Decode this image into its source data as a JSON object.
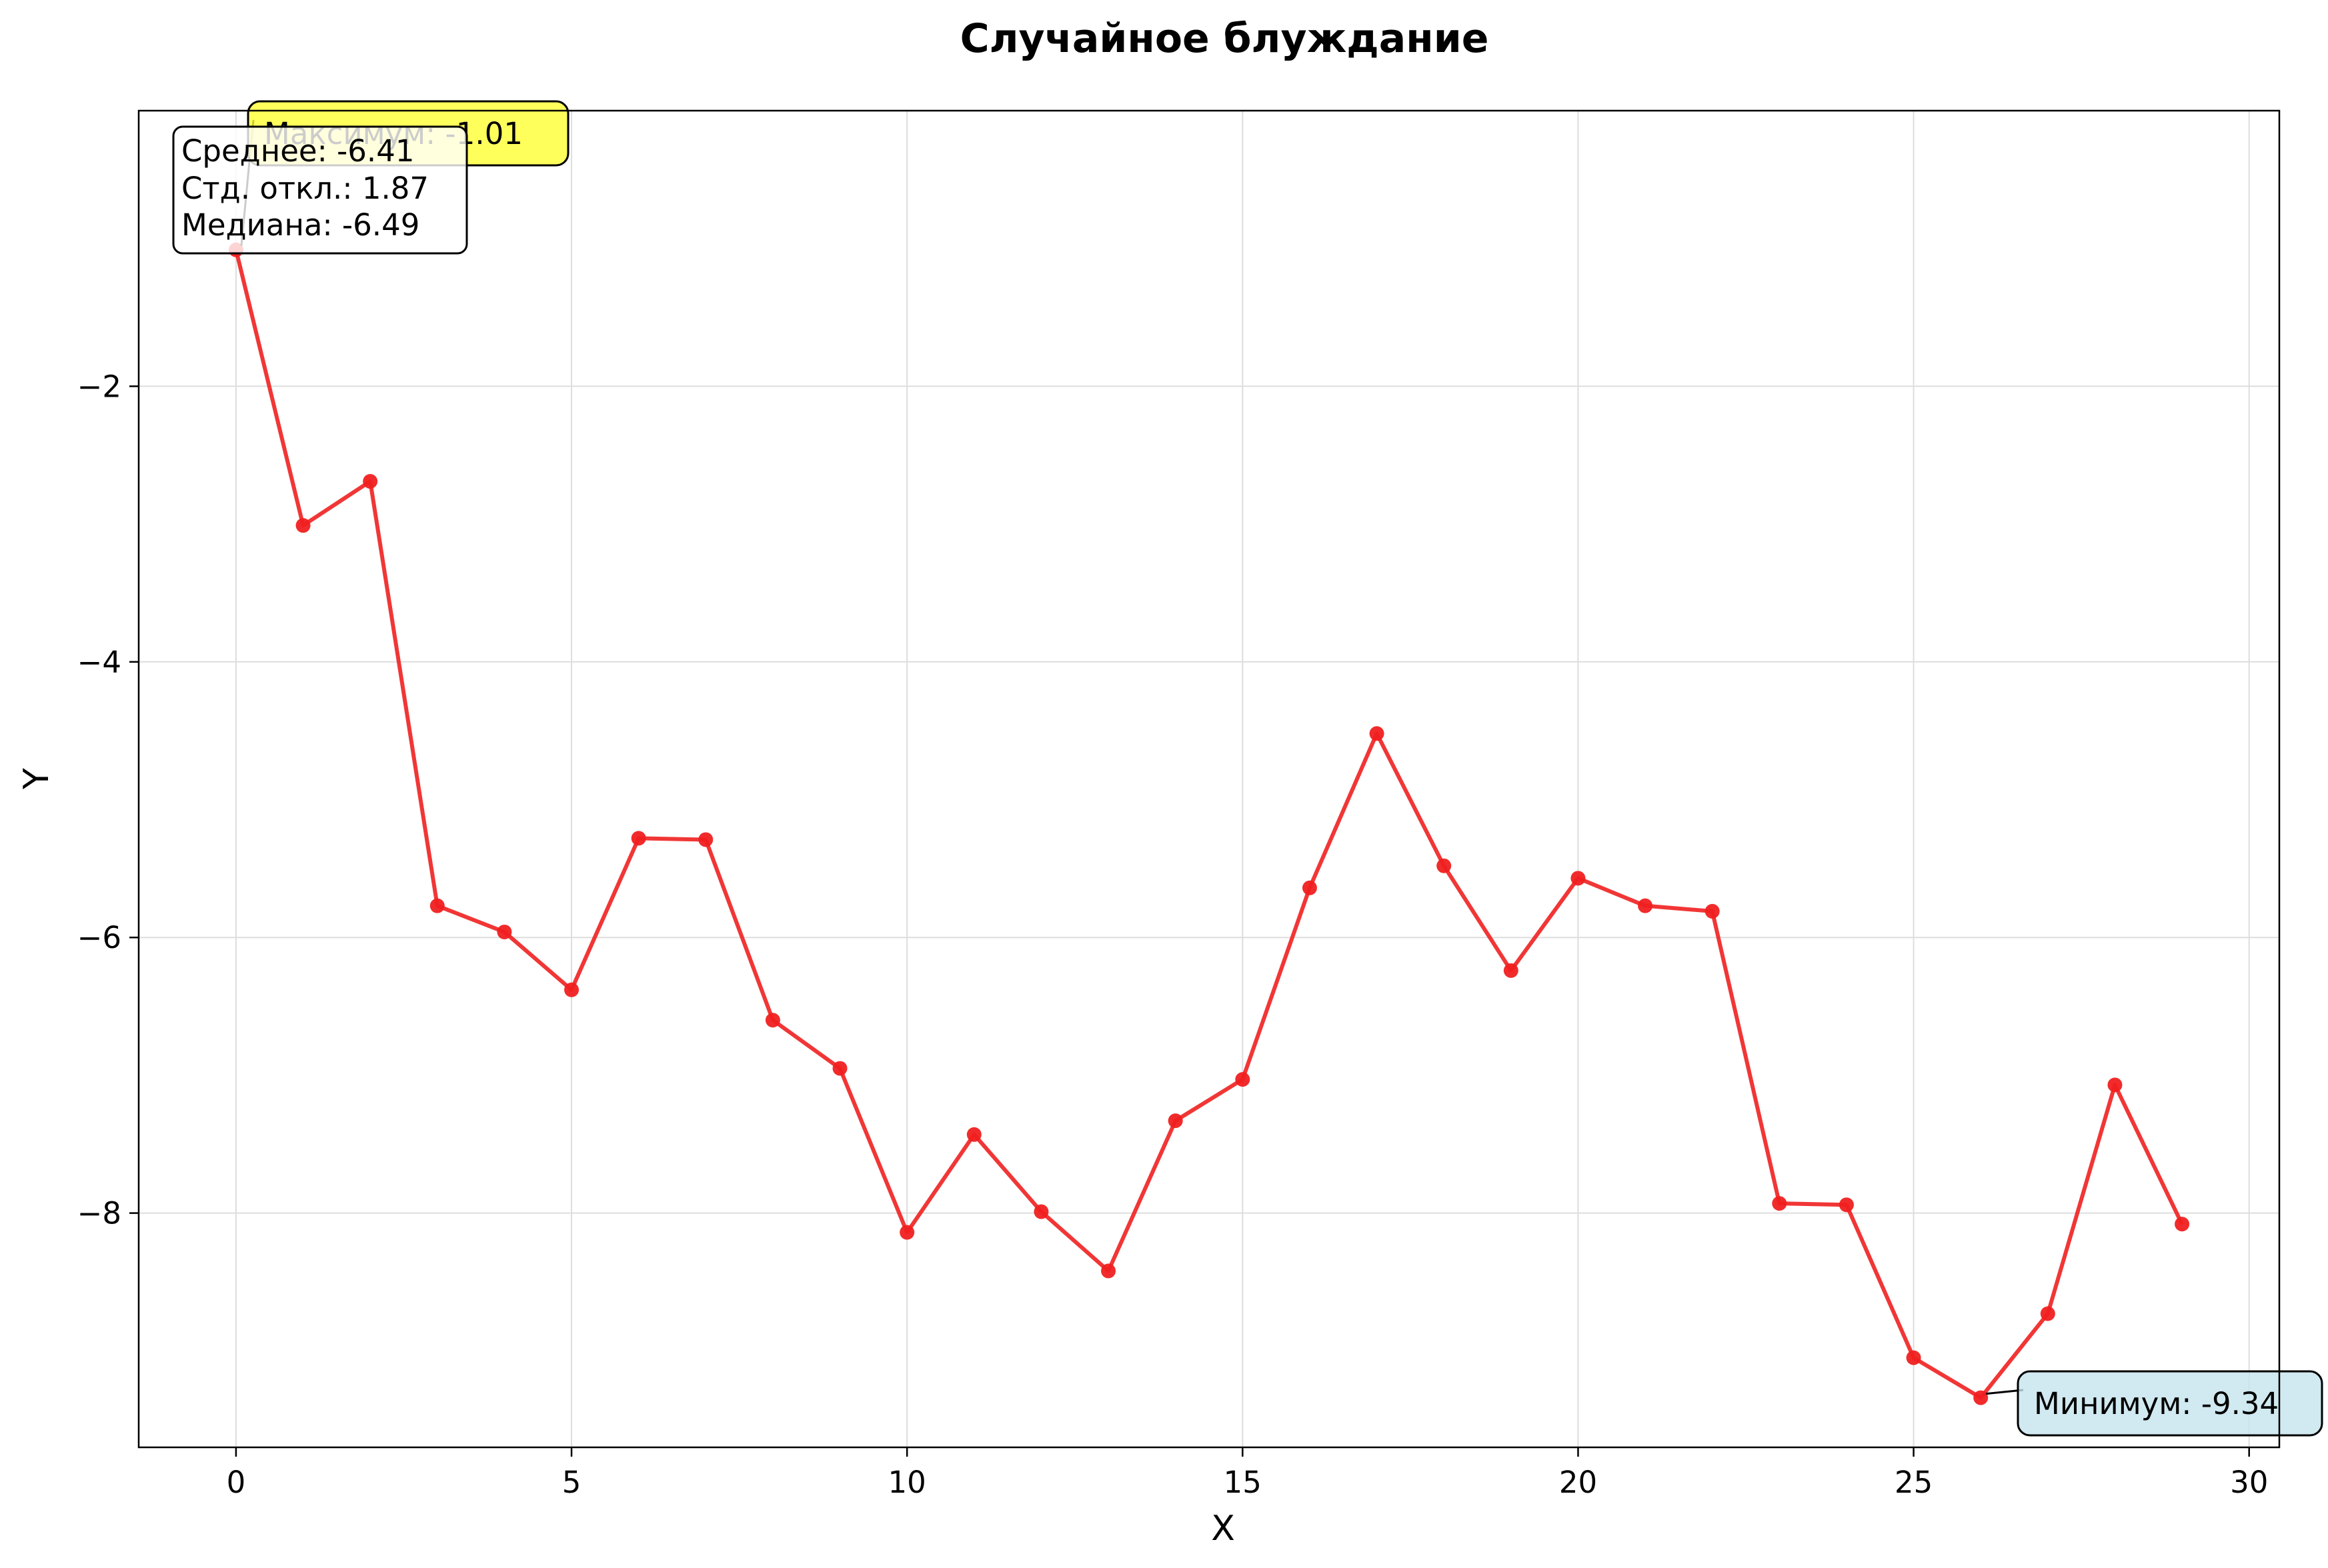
{
  "chart_data": {
    "type": "line",
    "title": "Случайное блуждание",
    "xlabel": "X",
    "ylabel": "Y",
    "xlim": [
      -1.45,
      30.45
    ],
    "ylim": [
      -9.7,
      -0.0
    ],
    "grid": true,
    "xticks": [
      0,
      5,
      10,
      15,
      20,
      25,
      30
    ],
    "xtick_labels": [
      "0",
      "5",
      "10",
      "15",
      "20",
      "25",
      "30"
    ],
    "yticks": [
      -2,
      -4,
      -6,
      -8
    ],
    "ytick_labels": [
      "−2",
      "−4",
      "−6",
      "−8"
    ],
    "series": [
      {
        "name": "Случайное блуждание",
        "color": "#f02020",
        "x": [
          0,
          1,
          2,
          3,
          4,
          5,
          6,
          7,
          8,
          9,
          10,
          11,
          12,
          13,
          14,
          15,
          16,
          17,
          18,
          19,
          20,
          21,
          22,
          23,
          24,
          25,
          26,
          27,
          28,
          29
        ],
        "values": [
          -1.01,
          -3.01,
          -2.69,
          -5.77,
          -5.96,
          -6.38,
          -5.28,
          -5.29,
          -6.6,
          -6.95,
          -8.14,
          -7.43,
          -7.99,
          -8.42,
          -7.33,
          -7.03,
          -5.64,
          -4.52,
          -5.48,
          -6.24,
          -5.57,
          -5.77,
          -5.81,
          -7.93,
          -7.94,
          -9.05,
          -9.34,
          -8.73,
          -7.07,
          -8.08
        ]
      }
    ],
    "annotations": {
      "max": {
        "label": "Максимум: -1.01",
        "x": 0,
        "y": -1.01,
        "color": "#ffff33"
      },
      "min": {
        "label": "Минимум: -9.34",
        "x": 26,
        "y": -9.34,
        "color": "#c6e4ec"
      }
    },
    "stats": {
      "mean": "Среднее: -6.41",
      "std": "Стд. откл.: 1.87",
      "median": "Медиана: -6.49"
    }
  }
}
